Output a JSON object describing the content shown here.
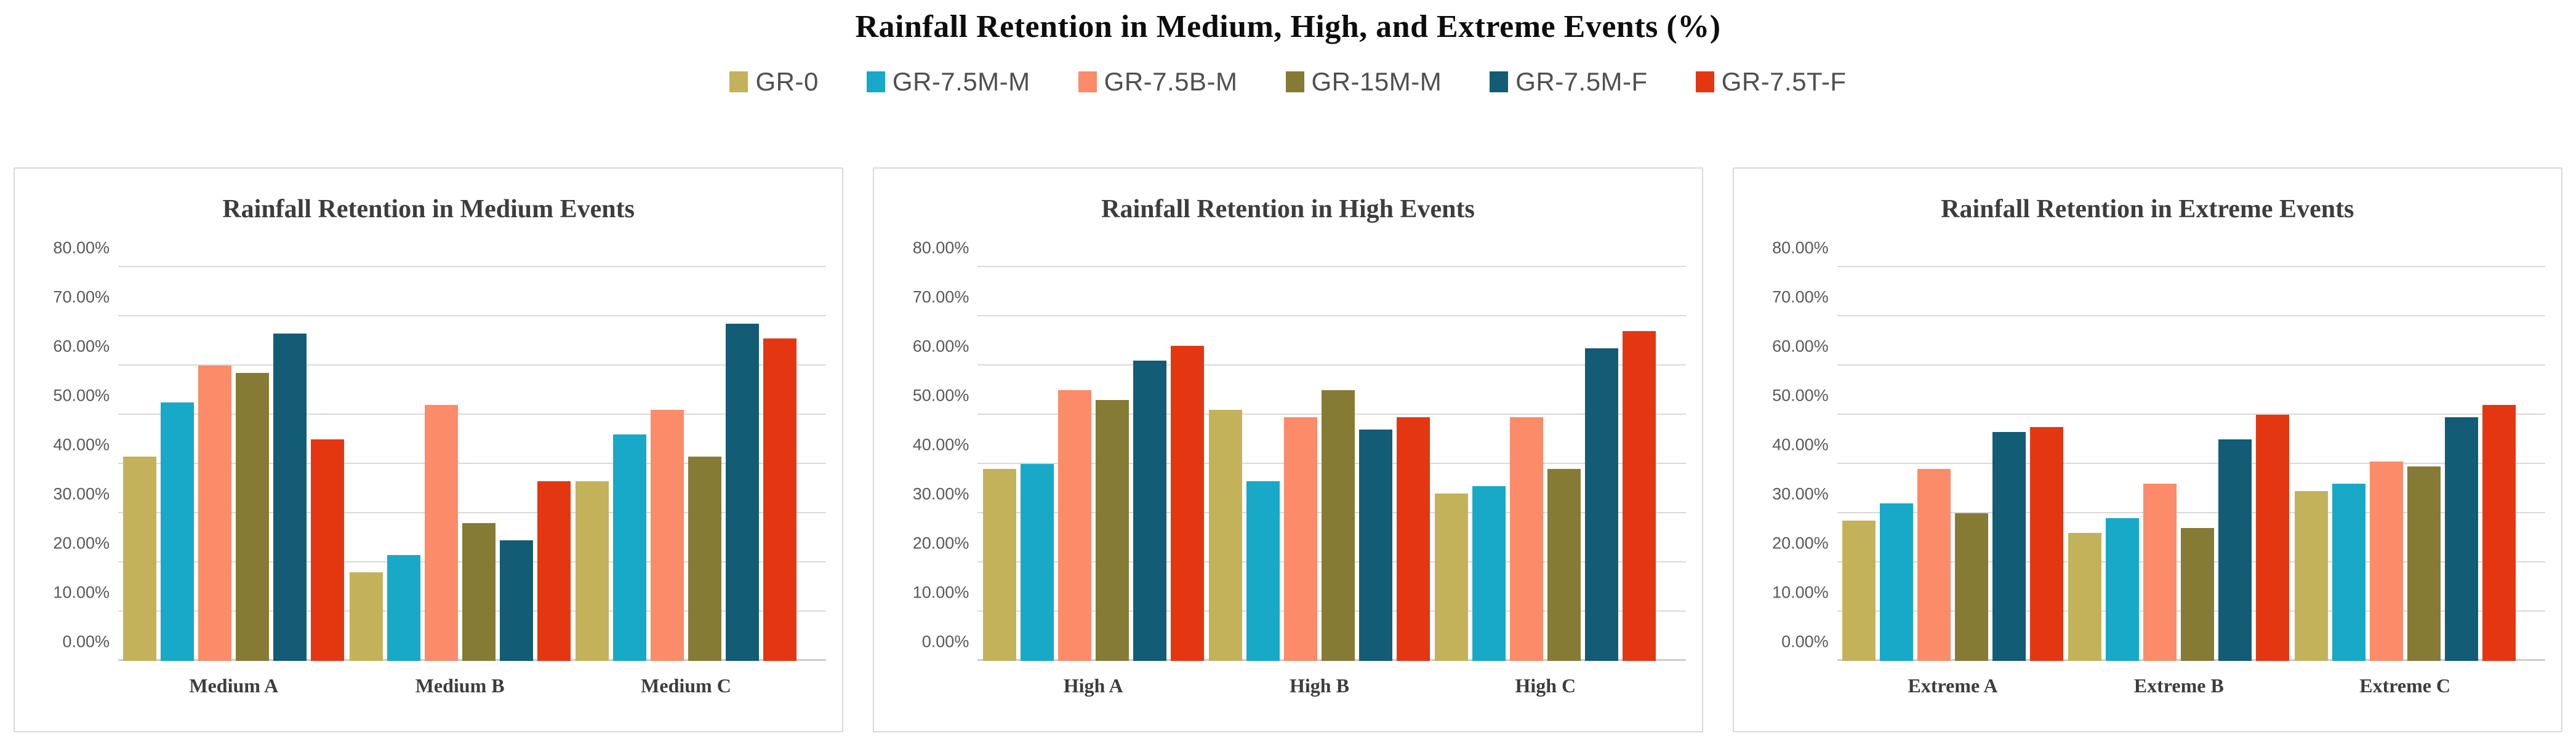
{
  "figure": {
    "title": "Rainfall Retention in Medium, High, and Extreme Events (%)"
  },
  "legend": {
    "position": "top",
    "items": [
      {
        "label": "GR-0",
        "color": "#C4B25A"
      },
      {
        "label": "GR-7.5M-M",
        "color": "#17A9C7"
      },
      {
        "label": "GR-7.5B-M",
        "color": "#FB8B69"
      },
      {
        "label": "GR-15M-M",
        "color": "#867B34"
      },
      {
        "label": "GR-7.5M-F",
        "color": "#135C75"
      },
      {
        "label": "GR-7.5T-F",
        "color": "#E43711"
      }
    ]
  },
  "axis": {
    "tick_labels": [
      "0.00%",
      "10.00%",
      "20.00%",
      "30.00%",
      "40.00%",
      "50.00%",
      "60.00%",
      "70.00%",
      "80.00%"
    ],
    "tick_values": [
      0,
      10,
      20,
      30,
      40,
      50,
      60,
      70,
      80
    ],
    "max": 80,
    "grid": true
  },
  "style": {
    "gridline_color": "#d9d9d9",
    "axis_text_color": "#595959",
    "title_text_color": "#3d3d3d"
  },
  "chart_data": [
    {
      "type": "bar",
      "title": "Rainfall Retention in Medium Events",
      "categories": [
        "Medium A",
        "Medium B",
        "Medium C"
      ],
      "series": [
        {
          "name": "GR-0",
          "color": "#C4B25A",
          "values": [
            41.5,
            18.0,
            36.5
          ]
        },
        {
          "name": "GR-7.5M-M",
          "color": "#17A9C7",
          "values": [
            52.5,
            21.5,
            46.0
          ]
        },
        {
          "name": "GR-7.5B-M",
          "color": "#FB8B69",
          "values": [
            60.0,
            52.0,
            51.0
          ]
        },
        {
          "name": "GR-15M-M",
          "color": "#867B34",
          "values": [
            58.5,
            28.0,
            41.5
          ]
        },
        {
          "name": "GR-7.5M-F",
          "color": "#135C75",
          "values": [
            66.5,
            24.5,
            68.5
          ]
        },
        {
          "name": "GR-7.5T-F",
          "color": "#E43711",
          "values": [
            45.0,
            36.5,
            65.5
          ]
        }
      ],
      "xlabel": "",
      "ylabel": "",
      "ylim": [
        0,
        80
      ],
      "grid": true
    },
    {
      "type": "bar",
      "title": "Rainfall Retention in High Events",
      "categories": [
        "High A",
        "High B",
        "High C"
      ],
      "series": [
        {
          "name": "GR-0",
          "color": "#C4B25A",
          "values": [
            39.0,
            51.0,
            34.0
          ]
        },
        {
          "name": "GR-7.5M-M",
          "color": "#17A9C7",
          "values": [
            40.0,
            36.5,
            35.5
          ]
        },
        {
          "name": "GR-7.5B-M",
          "color": "#FB8B69",
          "values": [
            55.0,
            49.5,
            49.5
          ]
        },
        {
          "name": "GR-15M-M",
          "color": "#867B34",
          "values": [
            53.0,
            55.0,
            39.0
          ]
        },
        {
          "name": "GR-7.5M-F",
          "color": "#135C75",
          "values": [
            61.0,
            47.0,
            63.5
          ]
        },
        {
          "name": "GR-7.5T-F",
          "color": "#E43711",
          "values": [
            64.0,
            49.5,
            67.0
          ]
        }
      ],
      "xlabel": "",
      "ylabel": "",
      "ylim": [
        0,
        80
      ],
      "grid": true
    },
    {
      "type": "bar",
      "title": "Rainfall Retention in Extreme Events",
      "categories": [
        "Extreme A",
        "Extreme B",
        "Extreme C"
      ],
      "series": [
        {
          "name": "GR-0",
          "color": "#C4B25A",
          "values": [
            28.5,
            26.0,
            34.5
          ]
        },
        {
          "name": "GR-7.5M-M",
          "color": "#17A9C7",
          "values": [
            32.0,
            29.0,
            36.0
          ]
        },
        {
          "name": "GR-7.5B-M",
          "color": "#FB8B69",
          "values": [
            39.0,
            36.0,
            40.5
          ]
        },
        {
          "name": "GR-15M-M",
          "color": "#867B34",
          "values": [
            30.0,
            27.0,
            39.5
          ]
        },
        {
          "name": "GR-7.5M-F",
          "color": "#135C75",
          "values": [
            46.5,
            45.0,
            49.5
          ]
        },
        {
          "name": "GR-7.5T-F",
          "color": "#E43711",
          "values": [
            47.5,
            50.0,
            52.0
          ]
        }
      ],
      "xlabel": "",
      "ylabel": "",
      "ylim": [
        0,
        80
      ],
      "grid": true
    }
  ]
}
